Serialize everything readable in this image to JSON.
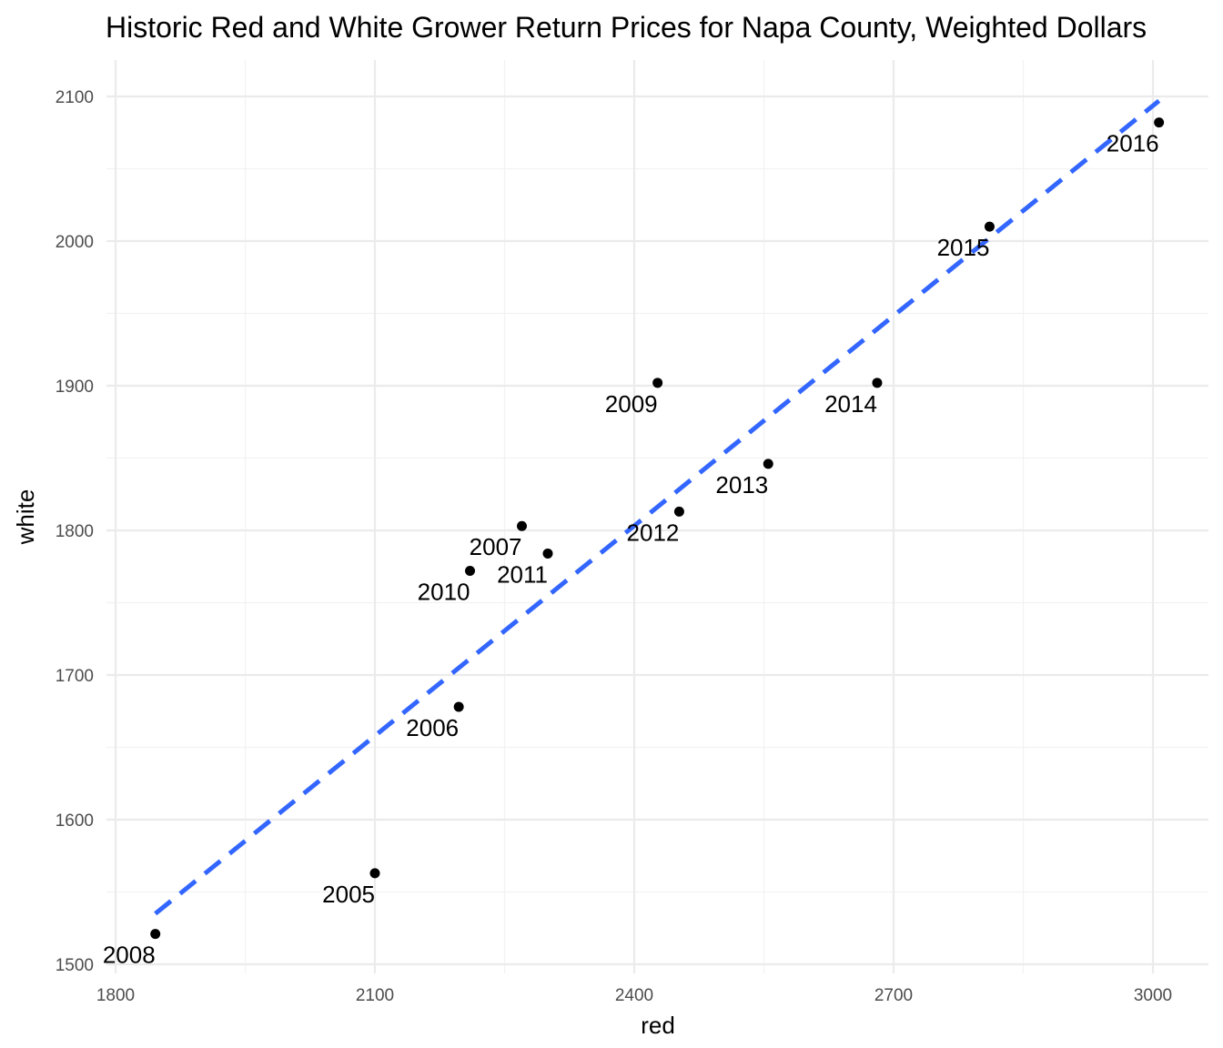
{
  "chart_data": {
    "type": "scatter",
    "title": "Historic Red and White Grower Return Prices for Napa County, Weighted Dollars",
    "xlabel": "red",
    "ylabel": "white",
    "xlim": [
      1800,
      3000
    ],
    "ylim": [
      1500,
      2100
    ],
    "x_ticks": [
      "1800",
      "2100",
      "2400",
      "2700",
      "3000"
    ],
    "y_ticks": [
      "1500",
      "1600",
      "1700",
      "1800",
      "1900",
      "2000",
      "2100"
    ],
    "grid": true,
    "legend": "none",
    "points": [
      {
        "label": "2005",
        "x": 2100,
        "y": 1563
      },
      {
        "label": "2006",
        "x": 2197,
        "y": 1678
      },
      {
        "label": "2007",
        "x": 2270,
        "y": 1803
      },
      {
        "label": "2008",
        "x": 1846,
        "y": 1521
      },
      {
        "label": "2009",
        "x": 2427,
        "y": 1902
      },
      {
        "label": "2010",
        "x": 2210,
        "y": 1772
      },
      {
        "label": "2011",
        "x": 2300,
        "y": 1784
      },
      {
        "label": "2012",
        "x": 2452,
        "y": 1813
      },
      {
        "label": "2013",
        "x": 2555,
        "y": 1846
      },
      {
        "label": "2014",
        "x": 2681,
        "y": 1902
      },
      {
        "label": "2015",
        "x": 2811,
        "y": 2010
      },
      {
        "label": "2016",
        "x": 3007,
        "y": 2082
      }
    ],
    "trend_line": {
      "style": "dashed",
      "color": "#3366ff",
      "x": [
        1846,
        3007
      ],
      "y": [
        1535,
        2097
      ]
    },
    "point_color": "#000000"
  }
}
